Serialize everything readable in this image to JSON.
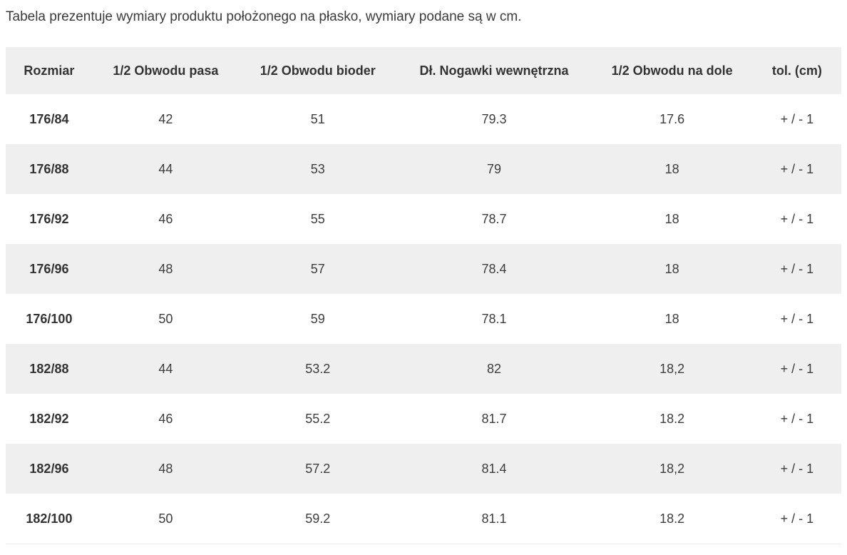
{
  "page": {
    "intro": "Tabela prezentuje wymiary produktu położonego na płasko, wymiary podane są w cm."
  },
  "table": {
    "columns": [
      "Rozmiar",
      "1/2 Obwodu pasa",
      "1/2 Obwodu bioder",
      "Dł. Nogawki wewnętrzna",
      "1/2 Obwodu na dole",
      "tol. (cm)"
    ],
    "rows": [
      [
        "176/84",
        "42",
        "51",
        "79.3",
        "17.6",
        "+ / - 1"
      ],
      [
        "176/88",
        "44",
        "53",
        "79",
        "18",
        "+ / - 1"
      ],
      [
        "176/92",
        "46",
        "55",
        "78.7",
        "18",
        "+ / - 1"
      ],
      [
        "176/96",
        "48",
        "57",
        "78.4",
        "18",
        "+ / - 1"
      ],
      [
        "176/100",
        "50",
        "59",
        "78.1",
        "18",
        "+ / - 1"
      ],
      [
        "182/88",
        "44",
        "53.2",
        "82",
        "18,2",
        "+ / - 1"
      ],
      [
        "182/92",
        "46",
        "55.2",
        "81.7",
        "18.2",
        "+ / - 1"
      ],
      [
        "182/96",
        "48",
        "57.2",
        "81.4",
        "18,2",
        "+ / - 1"
      ],
      [
        "182/100",
        "50",
        "59.2",
        "81.1",
        "18.2",
        "+ / - 1"
      ]
    ]
  },
  "colors": {
    "stripe_bg": "#efefef",
    "row_bg": "#ffffff",
    "text": "#3d3d3d",
    "header_text": "#333333"
  }
}
